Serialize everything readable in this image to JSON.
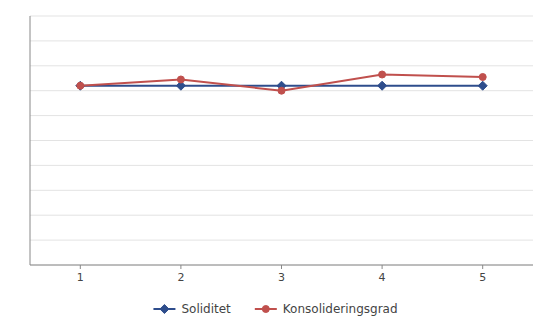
{
  "chart_data": {
    "type": "line",
    "x": [
      1,
      2,
      3,
      4,
      5
    ],
    "series": [
      {
        "name": "Soliditet",
        "color": "#2E4D8C",
        "marker": "diamond",
        "values": [
          0.72,
          0.72,
          0.72,
          0.72,
          0.72
        ]
      },
      {
        "name": "Konsolideringsgrad",
        "color": "#C0504D",
        "marker": "circle",
        "values": [
          0.72,
          0.745,
          0.7,
          0.765,
          0.755
        ]
      }
    ],
    "xlim": [
      0.5,
      5.5
    ],
    "ylim": [
      0.0,
      1.0
    ],
    "xticks": [
      1,
      2,
      3,
      4,
      5
    ],
    "yticks": [
      0,
      0.1,
      0.2,
      0.3,
      0.4,
      0.5,
      0.6,
      0.7,
      0.8,
      0.9,
      1
    ],
    "grid": true,
    "legend": "bottom",
    "tick_labels": "x"
  }
}
